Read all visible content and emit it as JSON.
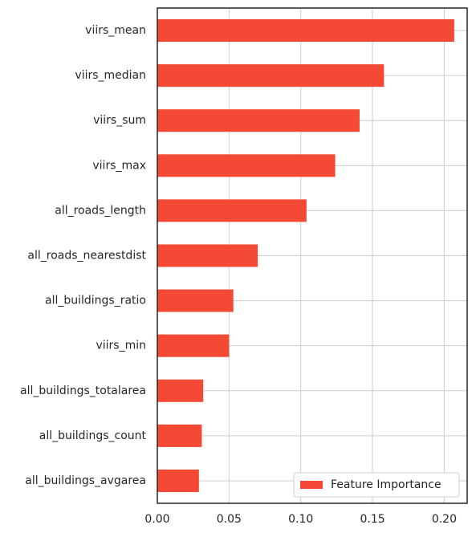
{
  "chart_data": {
    "type": "bar",
    "orientation": "horizontal",
    "categories": [
      "viirs_mean",
      "viirs_median",
      "viirs_sum",
      "viirs_max",
      "all_roads_length",
      "all_roads_nearestdist",
      "all_buildings_ratio",
      "viirs_min",
      "all_buildings_totalarea",
      "all_buildings_count",
      "all_buildings_avgarea"
    ],
    "series": [
      {
        "name": "Feature Importance",
        "values": [
          0.207,
          0.158,
          0.141,
          0.124,
          0.104,
          0.07,
          0.053,
          0.05,
          0.032,
          0.031,
          0.029
        ]
      }
    ],
    "title": "",
    "xlabel": "",
    "ylabel": "",
    "xlim": [
      0,
      0.216
    ],
    "xticks": [
      0.0,
      0.05,
      0.1,
      0.15,
      0.2
    ],
    "xtick_labels": [
      "0.00",
      "0.05",
      "0.10",
      "0.15",
      "0.20"
    ],
    "grid": true,
    "legend_position": "lower-right",
    "colors": {
      "bar": "#f34935",
      "grid": "#cccccc",
      "axis": "#262626"
    }
  }
}
